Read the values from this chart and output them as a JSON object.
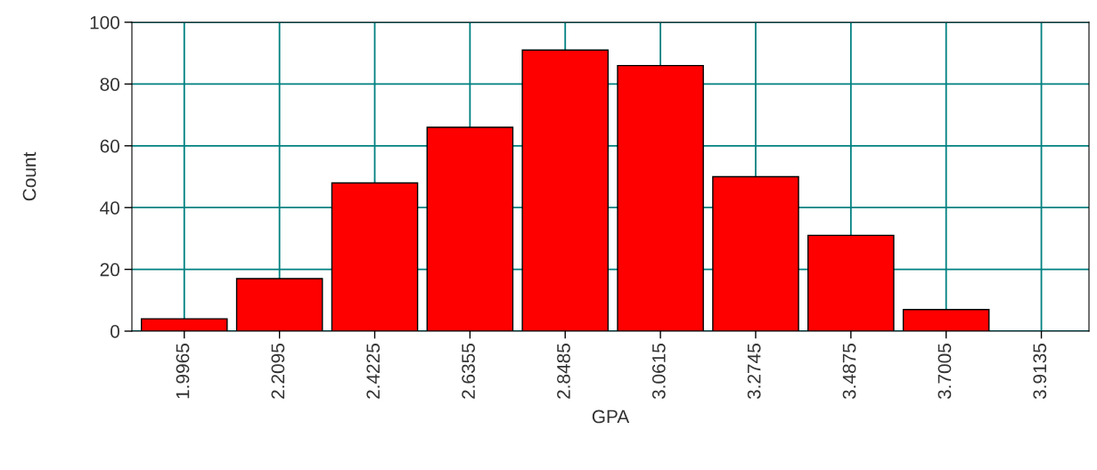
{
  "chart_data": {
    "type": "bar",
    "xlabel": "GPA",
    "ylabel": "Count",
    "categories": [
      "1.9965",
      "2.2095",
      "2.4225",
      "2.6355",
      "2.8485",
      "3.0615",
      "3.2745",
      "3.4875",
      "3.7005",
      "3.9135"
    ],
    "values": [
      4,
      17,
      48,
      66,
      91,
      86,
      50,
      31,
      7,
      0
    ],
    "color": "#ff0000",
    "ylim": [
      0,
      100
    ],
    "yticks": [
      0,
      20,
      40,
      60,
      80,
      100
    ],
    "grid": true
  }
}
